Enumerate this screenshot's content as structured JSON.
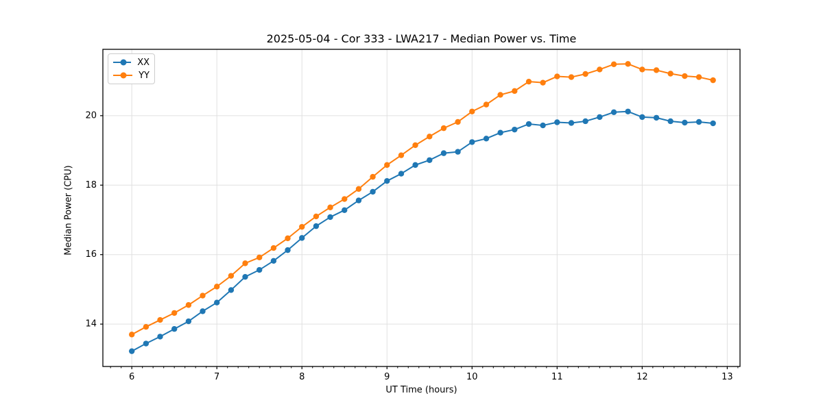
{
  "chart_data": {
    "type": "line",
    "title": "2025-05-04 - Cor 333 - LWA217 - Median Power vs. Time",
    "xlabel": "UT Time (hours)",
    "ylabel": "Median Power (CPU)",
    "xlim": [
      5.66,
      13.15
    ],
    "ylim": [
      12.78,
      21.91
    ],
    "xticks": [
      6,
      7,
      8,
      9,
      10,
      11,
      12,
      13
    ],
    "yticks": [
      14,
      16,
      18,
      20
    ],
    "x_minor_tick_step": 0.125,
    "grid": true,
    "grid_color": "#e0e0e0",
    "spine_color": "#000000",
    "legend_position": "upper left",
    "marker": "circle",
    "x": [
      6.0,
      6.167,
      6.333,
      6.5,
      6.667,
      6.833,
      7.0,
      7.167,
      7.333,
      7.5,
      7.667,
      7.833,
      8.0,
      8.167,
      8.333,
      8.5,
      8.667,
      8.833,
      9.0,
      9.167,
      9.333,
      9.5,
      9.667,
      9.833,
      10.0,
      10.167,
      10.333,
      10.5,
      10.667,
      10.833,
      11.0,
      11.167,
      11.333,
      11.5,
      11.667,
      11.833,
      12.0,
      12.167,
      12.333,
      12.5,
      12.667,
      12.833
    ],
    "series": [
      {
        "name": "XX",
        "color": "#1f77b4",
        "values": [
          13.22,
          13.44,
          13.64,
          13.86,
          14.08,
          14.37,
          14.62,
          14.98,
          15.36,
          15.56,
          15.82,
          16.13,
          16.48,
          16.82,
          17.08,
          17.28,
          17.56,
          17.81,
          18.12,
          18.33,
          18.58,
          18.72,
          18.92,
          18.96,
          19.24,
          19.34,
          19.51,
          19.6,
          19.76,
          19.72,
          19.81,
          19.79,
          19.84,
          19.96,
          20.1,
          20.12,
          19.96,
          19.94,
          19.84,
          19.8,
          19.82,
          19.78
        ]
      },
      {
        "name": "YY",
        "color": "#ff7f0e",
        "values": [
          13.7,
          13.92,
          14.12,
          14.32,
          14.55,
          14.82,
          15.08,
          15.39,
          15.75,
          15.92,
          16.19,
          16.47,
          16.8,
          17.1,
          17.36,
          17.6,
          17.89,
          18.24,
          18.58,
          18.86,
          19.15,
          19.4,
          19.64,
          19.82,
          20.12,
          20.32,
          20.6,
          20.71,
          20.98,
          20.95,
          21.13,
          21.11,
          21.2,
          21.33,
          21.48,
          21.49,
          21.33,
          21.31,
          21.21,
          21.14,
          21.11,
          21.02
        ]
      }
    ]
  }
}
